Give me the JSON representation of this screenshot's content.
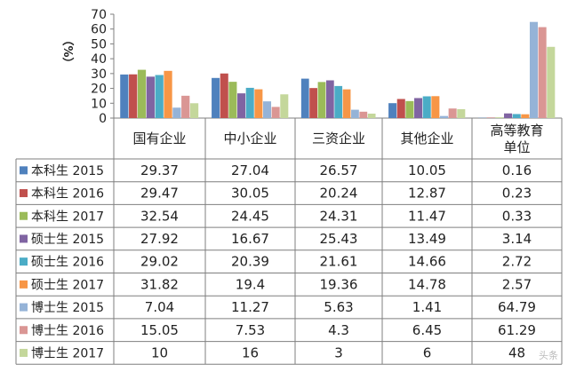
{
  "chart_data": {
    "type": "bar",
    "ylabel": "（%）",
    "ylim": [
      0,
      70
    ],
    "yticks": [
      0,
      10,
      20,
      30,
      40,
      50,
      60,
      70
    ],
    "grid": false,
    "legend": "table-rows",
    "categories": [
      "国有企业",
      "中小企业",
      "三资企业",
      "其他企业",
      "高等教育单位"
    ],
    "series": [
      {
        "name": "本科生 2015",
        "color": "#4F81BD",
        "values": [
          29.37,
          27.04,
          26.57,
          10.05,
          0.16
        ],
        "labels": [
          "29.37",
          "27.04",
          "26.57",
          "10.05",
          "0.16"
        ]
      },
      {
        "name": "本科生 2016",
        "color": "#C0504D",
        "values": [
          29.47,
          30.05,
          20.24,
          12.87,
          0.23
        ],
        "labels": [
          "29.47",
          "30.05",
          "20.24",
          "12.87",
          "0.23"
        ]
      },
      {
        "name": "本科生 2017",
        "color": "#9BBB59",
        "values": [
          32.54,
          24.45,
          24.31,
          11.47,
          0.33
        ],
        "labels": [
          "32.54",
          "24.45",
          "24.31",
          "11.47",
          "0.33"
        ]
      },
      {
        "name": "硕士生 2015",
        "color": "#8064A2",
        "values": [
          27.92,
          16.67,
          25.43,
          13.49,
          3.14
        ],
        "labels": [
          "27.92",
          "16.67",
          "25.43",
          "13.49",
          "3.14"
        ]
      },
      {
        "name": "硕士生 2016",
        "color": "#4BACC6",
        "values": [
          29.02,
          20.39,
          21.61,
          14.66,
          2.72
        ],
        "labels": [
          "29.02",
          "20.39",
          "21.61",
          "14.66",
          "2.72"
        ]
      },
      {
        "name": "硕士生 2017",
        "color": "#F79646",
        "values": [
          31.82,
          19.4,
          19.36,
          14.78,
          2.57
        ],
        "labels": [
          "31.82",
          "19.4",
          "19.36",
          "14.78",
          "2.57"
        ]
      },
      {
        "name": "博士生 2015",
        "color": "#95B3D7",
        "values": [
          7.04,
          11.27,
          5.63,
          1.41,
          64.79
        ],
        "labels": [
          "7.04",
          "11.27",
          "5.63",
          "1.41",
          "64.79"
        ]
      },
      {
        "name": "博士生 2016",
        "color": "#DA9694",
        "values": [
          15.05,
          7.53,
          4.3,
          6.45,
          61.29
        ],
        "labels": [
          "15.05",
          "7.53",
          "4.3",
          "6.45",
          "61.29"
        ]
      },
      {
        "name": "博士生 2017",
        "color": "#C4D79B",
        "values": [
          10,
          16,
          3,
          6,
          48
        ],
        "labels": [
          "10",
          "16",
          "3",
          "6",
          "48"
        ]
      }
    ]
  },
  "watermark": "头条"
}
